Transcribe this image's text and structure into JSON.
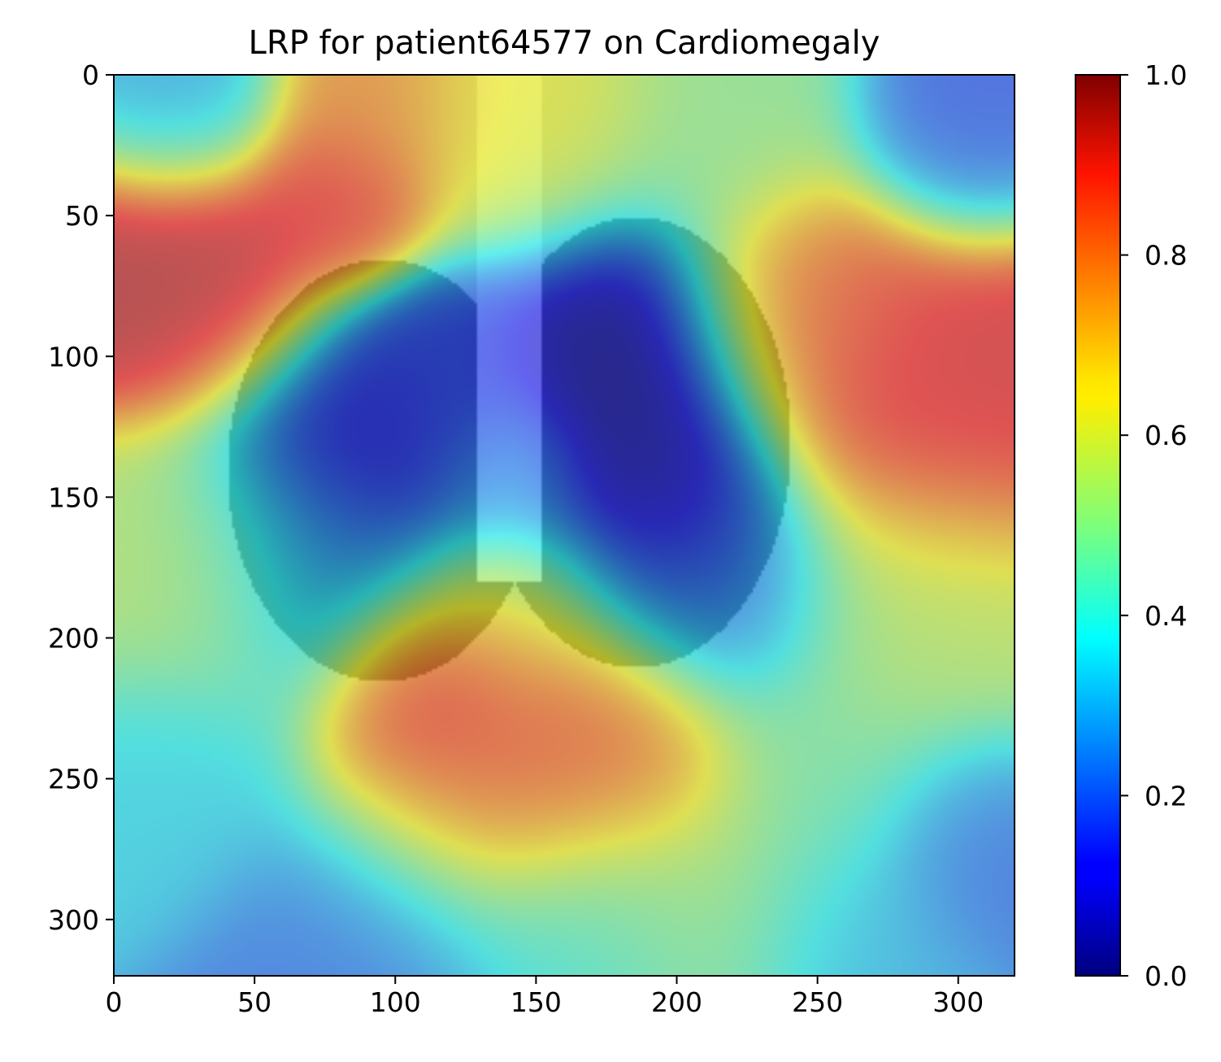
{
  "chart_data": {
    "type": "heatmap",
    "title": "LRP for patient64577 on Cardiomegaly",
    "xlabel": "",
    "ylabel": "",
    "colormap": "jet",
    "xlim": [
      0,
      320
    ],
    "ylim": [
      320,
      0
    ],
    "x_ticks": [
      0,
      50,
      100,
      150,
      200,
      250,
      300
    ],
    "y_ticks": [
      0,
      50,
      100,
      150,
      200,
      250,
      300
    ],
    "colorbar": {
      "min": 0.0,
      "max": 1.0,
      "ticks": [
        "0.0",
        "0.2",
        "0.4",
        "0.6",
        "0.8",
        "1.0"
      ]
    },
    "relevance_regions": [
      {
        "x": 30,
        "y": 70,
        "value": 0.95,
        "spread": 28
      },
      {
        "x": 80,
        "y": 45,
        "value": 0.88,
        "spread": 18
      },
      {
        "x": 25,
        "y": 10,
        "value": 0.28,
        "spread": 20
      },
      {
        "x": 90,
        "y": 10,
        "value": 0.75,
        "spread": 20
      },
      {
        "x": 145,
        "y": 20,
        "value": 0.62,
        "spread": 28
      },
      {
        "x": 220,
        "y": 20,
        "value": 0.5,
        "spread": 26
      },
      {
        "x": 300,
        "y": 20,
        "value": 0.18,
        "spread": 22
      },
      {
        "x": 290,
        "y": 110,
        "value": 0.9,
        "spread": 35
      },
      {
        "x": 245,
        "y": 80,
        "value": 0.8,
        "spread": 25
      },
      {
        "x": 90,
        "y": 130,
        "value": 0.08,
        "spread": 30
      },
      {
        "x": 80,
        "y": 180,
        "value": 0.25,
        "spread": 28
      },
      {
        "x": 120,
        "y": 110,
        "value": 0.2,
        "spread": 22
      },
      {
        "x": 180,
        "y": 100,
        "value": 0.03,
        "spread": 30
      },
      {
        "x": 190,
        "y": 160,
        "value": 0.06,
        "spread": 30
      },
      {
        "x": 215,
        "y": 190,
        "value": 0.22,
        "spread": 24
      },
      {
        "x": 140,
        "y": 140,
        "value": 0.32,
        "spread": 16
      },
      {
        "x": 140,
        "y": 190,
        "value": 0.6,
        "spread": 22
      },
      {
        "x": 110,
        "y": 215,
        "value": 0.97,
        "spread": 20
      },
      {
        "x": 150,
        "y": 230,
        "value": 0.85,
        "spread": 32
      },
      {
        "x": 120,
        "y": 250,
        "value": 0.8,
        "spread": 28
      },
      {
        "x": 180,
        "y": 240,
        "value": 0.82,
        "spread": 25
      },
      {
        "x": 210,
        "y": 290,
        "value": 0.55,
        "spread": 30
      },
      {
        "x": 30,
        "y": 180,
        "value": 0.55,
        "spread": 30
      },
      {
        "x": 20,
        "y": 250,
        "value": 0.35,
        "spread": 25
      },
      {
        "x": 280,
        "y": 200,
        "value": 0.55,
        "spread": 35
      },
      {
        "x": 250,
        "y": 250,
        "value": 0.45,
        "spread": 25
      },
      {
        "x": 305,
        "y": 270,
        "value": 0.2,
        "spread": 22
      },
      {
        "x": 90,
        "y": 300,
        "value": 0.22,
        "spread": 30
      },
      {
        "x": 170,
        "y": 305,
        "value": 0.38,
        "spread": 30
      },
      {
        "x": 260,
        "y": 305,
        "value": 0.3,
        "spread": 25
      }
    ]
  }
}
